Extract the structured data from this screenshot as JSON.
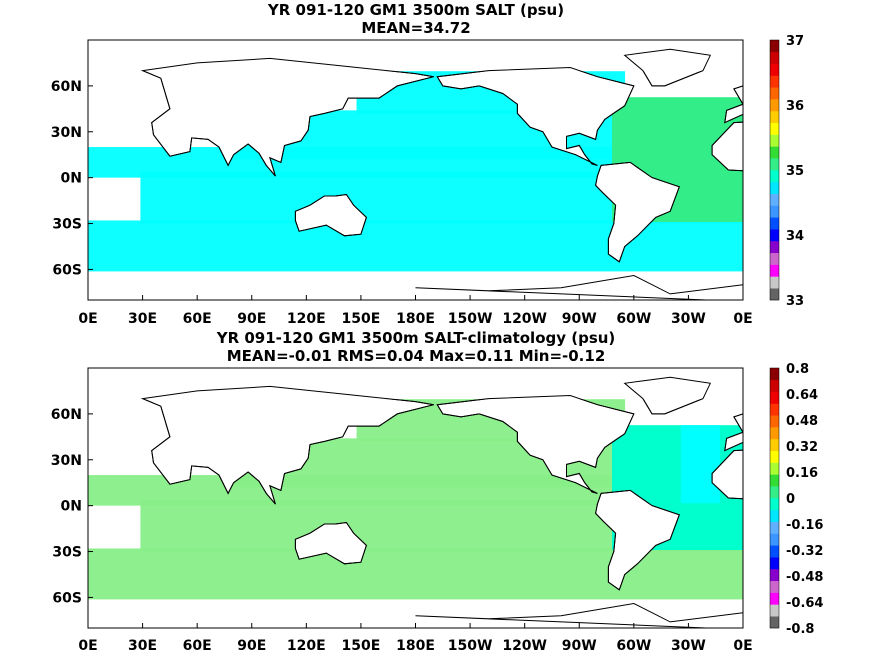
{
  "chart_data": [
    {
      "type": "heatmap",
      "title": "YR 091-120 GM1 3500m SALT (psu)",
      "subtitle": "MEAN=34.72",
      "x_ticks": [
        "0E",
        "30E",
        "60E",
        "90E",
        "120E",
        "150E",
        "180E",
        "150W",
        "120W",
        "90W",
        "60W",
        "30W",
        "0E"
      ],
      "y_ticks": [
        "60N",
        "30N",
        "0N",
        "30S",
        "60S"
      ],
      "xlim": [
        0,
        360
      ],
      "ylim": [
        -80,
        90
      ],
      "colorbar": {
        "ticks": [
          "37",
          "36",
          "35",
          "34",
          "33"
        ],
        "range": [
          33,
          37
        ],
        "colors": [
          "#646464",
          "#c8c8c8",
          "#ff00ff",
          "#cc66cc",
          "#8800cc",
          "#0000ff",
          "#0050ff",
          "#3c96ff",
          "#60b0ff",
          "#00e6ff",
          "#00ffcc",
          "#33ee88",
          "#33dd33",
          "#aaff33",
          "#ffff00",
          "#ffcc00",
          "#ff9900",
          "#ff6600",
          "#ff3300",
          "#ee0000",
          "#cc0000",
          "#8b0000"
        ]
      },
      "fill_colors": {
        "dominant": "#00ffff",
        "secondary": "#33ee88"
      }
    },
    {
      "type": "heatmap",
      "title": "YR 091-120 GM1 3500m SALT-climatology (psu)",
      "subtitle": "MEAN=-0.01   RMS=0.04   Max=0.11   Min=-0.12",
      "x_ticks": [
        "0E",
        "30E",
        "60E",
        "90E",
        "120E",
        "150E",
        "180E",
        "150W",
        "120W",
        "90W",
        "60W",
        "30W",
        "0E"
      ],
      "y_ticks": [
        "60N",
        "30N",
        "0N",
        "30S",
        "60S"
      ],
      "xlim": [
        0,
        360
      ],
      "ylim": [
        -80,
        90
      ],
      "colorbar": {
        "ticks": [
          "0.8",
          "0.64",
          "0.48",
          "0.32",
          "0.16",
          "0",
          "-0.16",
          "-0.32",
          "-0.48",
          "-0.64",
          "-0.8"
        ],
        "range": [
          -0.8,
          0.8
        ],
        "colors": [
          "#646464",
          "#c8c8c8",
          "#ff00ff",
          "#cc66cc",
          "#8800cc",
          "#0000ff",
          "#0050ff",
          "#3c96ff",
          "#60b0ff",
          "#00e6ff",
          "#00ffcc",
          "#33ee88",
          "#33dd33",
          "#aaff33",
          "#ffff00",
          "#ffcc00",
          "#ff9900",
          "#ff6600",
          "#ff3300",
          "#ee0000",
          "#cc0000",
          "#8b0000"
        ]
      },
      "fill_colors": {
        "dominant": "#88ee88",
        "secondary": "#00ffcc",
        "negative": "#00ffff"
      }
    }
  ]
}
